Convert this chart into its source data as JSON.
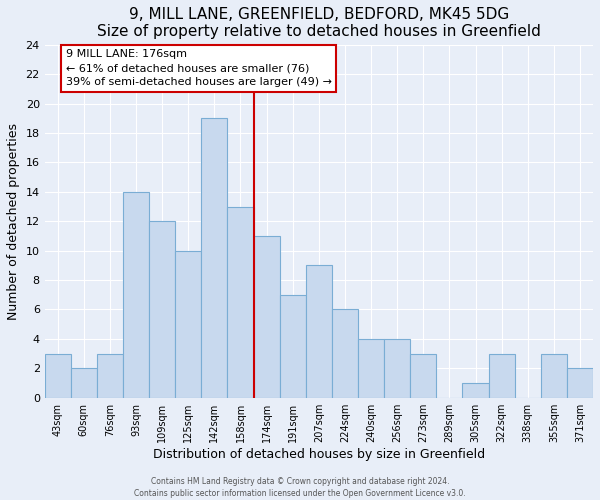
{
  "title": "9, MILL LANE, GREENFIELD, BEDFORD, MK45 5DG",
  "subtitle": "Size of property relative to detached houses in Greenfield",
  "xlabel": "Distribution of detached houses by size in Greenfield",
  "ylabel": "Number of detached properties",
  "bar_labels": [
    "43sqm",
    "60sqm",
    "76sqm",
    "93sqm",
    "109sqm",
    "125sqm",
    "142sqm",
    "158sqm",
    "174sqm",
    "191sqm",
    "207sqm",
    "224sqm",
    "240sqm",
    "256sqm",
    "273sqm",
    "289sqm",
    "305sqm",
    "322sqm",
    "338sqm",
    "355sqm",
    "371sqm"
  ],
  "bar_values": [
    3,
    2,
    3,
    14,
    12,
    10,
    19,
    13,
    11,
    7,
    9,
    6,
    4,
    4,
    3,
    0,
    1,
    3,
    0,
    3,
    2
  ],
  "bar_color": "#c8d9ee",
  "bar_edge_color": "#7aadd4",
  "vline_color": "#cc0000",
  "ylim": [
    0,
    24
  ],
  "yticks": [
    0,
    2,
    4,
    6,
    8,
    10,
    12,
    14,
    16,
    18,
    20,
    22,
    24
  ],
  "annotation_title": "9 MILL LANE: 176sqm",
  "annotation_line1": "← 61% of detached houses are smaller (76)",
  "annotation_line2": "39% of semi-detached houses are larger (49) →",
  "annotation_box_color": "#ffffff",
  "annotation_box_edge": "#cc0000",
  "footer_line1": "Contains HM Land Registry data © Crown copyright and database right 2024.",
  "footer_line2": "Contains public sector information licensed under the Open Government Licence v3.0.",
  "background_color": "#e8eef8",
  "grid_color": "#ffffff",
  "title_fontsize": 11,
  "subtitle_fontsize": 10,
  "xlabel_fontsize": 9,
  "ylabel_fontsize": 9
}
